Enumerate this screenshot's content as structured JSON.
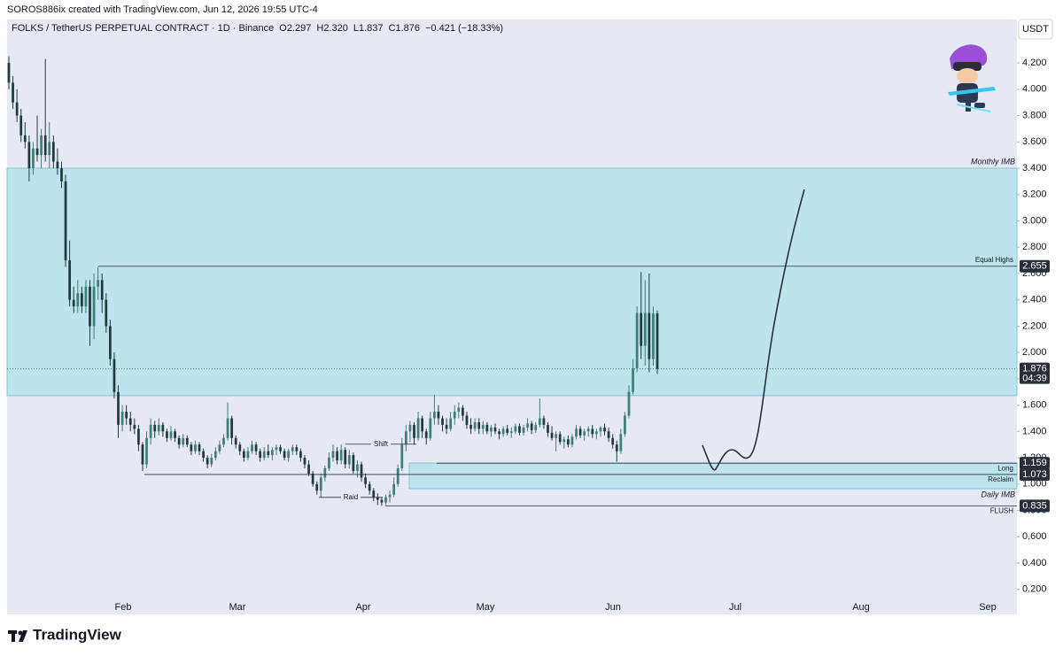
{
  "header": {
    "credit": "SOROS886ix created with TradingView.com, Jun 12, 2026 19:55 UTC-4",
    "brand": "TradingView"
  },
  "chart_data": {
    "type": "candlestick",
    "title": "FOLKS / TetherUS PERPETUAL CONTRACT · 1D · Binance",
    "legend_values": [
      "O2.297",
      "H2.320",
      "L1.837",
      "C1.876",
      "−0.421 (−18.33%)"
    ],
    "currency": "USDT",
    "up_color": "#3f7d79",
    "down_color": "#1f3b3e",
    "zone_color": "#bde3ed",
    "x_labels": [
      "Feb",
      "Mar",
      "Apr",
      "May",
      "Jun",
      "Jul",
      "Aug",
      "Sep"
    ],
    "ylim": [
      0.01,
      4.53
    ],
    "yticks": [
      {
        "value": 0.2,
        "label": "0.200"
      },
      {
        "value": 0.4,
        "label": "0.400"
      },
      {
        "value": 0.6,
        "label": "0.600"
      },
      {
        "value": 0.8,
        "label": "0.800"
      },
      {
        "value": 1.0,
        "label": "1.000"
      },
      {
        "value": 1.2,
        "label": "1.200"
      },
      {
        "value": 1.4,
        "label": "1.400"
      },
      {
        "value": 1.6,
        "label": "1.600"
      },
      {
        "value": 1.8,
        "label": "1.800"
      },
      {
        "value": 2.0,
        "label": "2.000"
      },
      {
        "value": 2.2,
        "label": "2.200"
      },
      {
        "value": 2.4,
        "label": "2.400"
      },
      {
        "value": 2.6,
        "label": "2.600"
      },
      {
        "value": 2.8,
        "label": "2.800"
      },
      {
        "value": 3.0,
        "label": "3.000"
      },
      {
        "value": 3.2,
        "label": "3.200"
      },
      {
        "value": 3.4,
        "label": "3.400"
      },
      {
        "value": 3.6,
        "label": "3.600"
      },
      {
        "value": 3.8,
        "label": "3.800"
      },
      {
        "value": 4.0,
        "label": "4.000"
      },
      {
        "value": 4.2,
        "label": "4.200"
      }
    ],
    "zones": [
      {
        "name": "Monthly IMB",
        "range": [
          3.4,
          1.672
        ]
      },
      {
        "name": "Daily IMB",
        "range": [
          1.16,
          0.965
        ]
      }
    ],
    "levels": [
      {
        "name": "Equal Highs",
        "value": 2.655
      },
      {
        "name": "Long",
        "value": 1.159
      },
      {
        "name": "Reclaim",
        "value": 1.073
      },
      {
        "name": "FLUSH",
        "value": 0.835
      },
      {
        "name": "Shift",
        "value": 1.303
      },
      {
        "name": "Raid",
        "value": 0.899
      }
    ],
    "current_price": 1.876,
    "countdown": "04:39",
    "candles": [
      [
        4.2,
        4.25,
        4.0,
        4.05
      ],
      [
        4.05,
        4.1,
        3.85,
        3.9
      ],
      [
        3.9,
        4.0,
        3.75,
        3.8
      ],
      [
        3.8,
        3.85,
        3.6,
        3.65
      ],
      [
        3.65,
        3.75,
        3.55,
        3.6
      ],
      [
        3.6,
        3.65,
        3.3,
        3.4
      ],
      [
        3.4,
        3.6,
        3.35,
        3.55
      ],
      [
        3.55,
        3.8,
        3.45,
        3.5
      ],
      [
        3.5,
        3.7,
        3.4,
        3.65
      ],
      [
        3.65,
        4.23,
        3.45,
        3.5
      ],
      [
        3.5,
        3.75,
        3.4,
        3.6
      ],
      [
        3.6,
        3.65,
        3.4,
        3.45
      ],
      [
        3.45,
        3.55,
        3.35,
        3.4
      ],
      [
        3.4,
        3.45,
        3.25,
        3.3
      ],
      [
        3.3,
        3.35,
        2.65,
        2.7
      ],
      [
        2.7,
        2.85,
        2.35,
        2.4
      ],
      [
        2.4,
        2.5,
        2.3,
        2.35
      ],
      [
        2.35,
        2.55,
        2.3,
        2.45
      ],
      [
        2.45,
        2.5,
        2.3,
        2.35
      ],
      [
        2.35,
        2.55,
        2.3,
        2.5
      ],
      [
        2.5,
        2.55,
        2.05,
        2.2
      ],
      [
        2.2,
        2.6,
        2.1,
        2.5
      ],
      [
        2.5,
        2.65,
        2.4,
        2.55
      ],
      [
        2.55,
        2.6,
        2.3,
        2.4
      ],
      [
        2.4,
        2.45,
        2.15,
        2.2
      ],
      [
        2.2,
        2.25,
        1.9,
        1.95
      ],
      [
        1.95,
        2.0,
        1.65,
        1.7
      ],
      [
        1.7,
        1.75,
        1.35,
        1.45
      ],
      [
        1.45,
        1.6,
        1.4,
        1.55
      ],
      [
        1.55,
        1.6,
        1.45,
        1.5
      ],
      [
        1.5,
        1.55,
        1.4,
        1.45
      ],
      [
        1.45,
        1.5,
        1.38,
        1.42
      ],
      [
        1.42,
        1.45,
        1.25,
        1.3
      ],
      [
        1.3,
        1.32,
        1.1,
        1.15
      ],
      [
        1.15,
        1.4,
        1.12,
        1.35
      ],
      [
        1.35,
        1.5,
        1.3,
        1.45
      ],
      [
        1.45,
        1.48,
        1.35,
        1.4
      ],
      [
        1.4,
        1.5,
        1.37,
        1.45
      ],
      [
        1.45,
        1.47,
        1.36,
        1.4
      ],
      [
        1.4,
        1.42,
        1.32,
        1.35
      ],
      [
        1.35,
        1.44,
        1.33,
        1.4
      ],
      [
        1.4,
        1.42,
        1.32,
        1.35
      ],
      [
        1.35,
        1.37,
        1.27,
        1.3
      ],
      [
        1.3,
        1.38,
        1.28,
        1.35
      ],
      [
        1.35,
        1.37,
        1.28,
        1.3
      ],
      [
        1.3,
        1.32,
        1.22,
        1.25
      ],
      [
        1.25,
        1.33,
        1.23,
        1.3
      ],
      [
        1.3,
        1.32,
        1.22,
        1.25
      ],
      [
        1.25,
        1.27,
        1.17,
        1.2
      ],
      [
        1.2,
        1.22,
        1.12,
        1.15
      ],
      [
        1.15,
        1.23,
        1.13,
        1.2
      ],
      [
        1.2,
        1.28,
        1.18,
        1.25
      ],
      [
        1.25,
        1.33,
        1.23,
        1.3
      ],
      [
        1.3,
        1.38,
        1.28,
        1.35
      ],
      [
        1.35,
        1.62,
        1.33,
        1.5
      ],
      [
        1.5,
        1.52,
        1.3,
        1.35
      ],
      [
        1.35,
        1.37,
        1.27,
        1.3
      ],
      [
        1.3,
        1.32,
        1.22,
        1.25
      ],
      [
        1.25,
        1.27,
        1.17,
        1.2
      ],
      [
        1.2,
        1.28,
        1.18,
        1.25
      ],
      [
        1.25,
        1.33,
        1.23,
        1.3
      ],
      [
        1.3,
        1.32,
        1.22,
        1.25
      ],
      [
        1.25,
        1.27,
        1.17,
        1.2
      ],
      [
        1.2,
        1.28,
        1.18,
        1.25
      ],
      [
        1.25,
        1.3,
        1.2,
        1.22
      ],
      [
        1.22,
        1.28,
        1.18,
        1.26
      ],
      [
        1.26,
        1.3,
        1.22,
        1.28
      ],
      [
        1.28,
        1.3,
        1.23,
        1.25
      ],
      [
        1.25,
        1.27,
        1.18,
        1.2
      ],
      [
        1.2,
        1.27,
        1.17,
        1.25
      ],
      [
        1.25,
        1.3,
        1.22,
        1.28
      ],
      [
        1.28,
        1.3,
        1.22,
        1.25
      ],
      [
        1.25,
        1.27,
        1.17,
        1.2
      ],
      [
        1.2,
        1.22,
        1.12,
        1.15
      ],
      [
        1.15,
        1.18,
        1.06,
        1.08
      ],
      [
        1.08,
        1.1,
        0.98,
        1.0
      ],
      [
        1.0,
        1.02,
        0.92,
        0.95
      ],
      [
        0.95,
        1.08,
        0.9,
        1.05
      ],
      [
        1.05,
        1.14,
        1.02,
        1.12
      ],
      [
        1.12,
        1.24,
        1.1,
        1.2
      ],
      [
        1.2,
        1.3,
        1.17,
        1.25
      ],
      [
        1.25,
        1.28,
        1.15,
        1.18
      ],
      [
        1.18,
        1.3,
        1.15,
        1.26
      ],
      [
        1.26,
        1.28,
        1.12,
        1.15
      ],
      [
        1.15,
        1.26,
        1.12,
        1.22
      ],
      [
        1.22,
        1.24,
        1.08,
        1.1
      ],
      [
        1.1,
        1.18,
        1.05,
        1.15
      ],
      [
        1.15,
        1.17,
        1.02,
        1.05
      ],
      [
        1.05,
        1.08,
        0.97,
        1.0
      ],
      [
        1.0,
        1.02,
        0.92,
        0.95
      ],
      [
        0.95,
        0.97,
        0.87,
        0.9
      ],
      [
        0.9,
        0.93,
        0.84,
        0.88
      ],
      [
        0.88,
        0.9,
        0.835,
        0.86
      ],
      [
        0.86,
        0.92,
        0.84,
        0.9
      ],
      [
        0.9,
        0.95,
        0.86,
        0.92
      ],
      [
        0.92,
        1.05,
        0.9,
        1.0
      ],
      [
        1.0,
        1.15,
        0.98,
        1.12
      ],
      [
        1.12,
        1.35,
        1.1,
        1.3
      ],
      [
        1.3,
        1.45,
        1.25,
        1.4
      ],
      [
        1.4,
        1.48,
        1.32,
        1.45
      ],
      [
        1.45,
        1.47,
        1.3,
        1.35
      ],
      [
        1.35,
        1.55,
        1.33,
        1.5
      ],
      [
        1.5,
        1.52,
        1.35,
        1.4
      ],
      [
        1.4,
        1.42,
        1.3,
        1.35
      ],
      [
        1.35,
        1.55,
        1.33,
        1.5
      ],
      [
        1.5,
        1.68,
        1.45,
        1.55
      ],
      [
        1.55,
        1.6,
        1.45,
        1.5
      ],
      [
        1.5,
        1.52,
        1.4,
        1.45
      ],
      [
        1.45,
        1.5,
        1.38,
        1.42
      ],
      [
        1.42,
        1.55,
        1.4,
        1.5
      ],
      [
        1.5,
        1.6,
        1.45,
        1.55
      ],
      [
        1.55,
        1.62,
        1.5,
        1.58
      ],
      [
        1.58,
        1.6,
        1.48,
        1.52
      ],
      [
        1.52,
        1.55,
        1.42,
        1.45
      ],
      [
        1.45,
        1.5,
        1.38,
        1.42
      ],
      [
        1.42,
        1.5,
        1.4,
        1.47
      ],
      [
        1.47,
        1.5,
        1.38,
        1.42
      ],
      [
        1.42,
        1.48,
        1.38,
        1.45
      ],
      [
        1.45,
        1.47,
        1.38,
        1.4
      ],
      [
        1.4,
        1.45,
        1.36,
        1.43
      ],
      [
        1.43,
        1.46,
        1.38,
        1.4
      ],
      [
        1.4,
        1.42,
        1.34,
        1.38
      ],
      [
        1.38,
        1.44,
        1.36,
        1.42
      ],
      [
        1.42,
        1.45,
        1.37,
        1.39
      ],
      [
        1.39,
        1.43,
        1.35,
        1.4
      ],
      [
        1.4,
        1.46,
        1.38,
        1.44
      ],
      [
        1.44,
        1.46,
        1.37,
        1.39
      ],
      [
        1.39,
        1.45,
        1.37,
        1.43
      ],
      [
        1.43,
        1.5,
        1.4,
        1.46
      ],
      [
        1.46,
        1.48,
        1.38,
        1.41
      ],
      [
        1.41,
        1.47,
        1.39,
        1.45
      ],
      [
        1.45,
        1.65,
        1.43,
        1.5
      ],
      [
        1.5,
        1.52,
        1.42,
        1.45
      ],
      [
        1.45,
        1.47,
        1.36,
        1.39
      ],
      [
        1.39,
        1.44,
        1.33,
        1.35
      ],
      [
        1.35,
        1.4,
        1.25,
        1.38
      ],
      [
        1.38,
        1.4,
        1.3,
        1.32
      ],
      [
        1.32,
        1.36,
        1.27,
        1.34
      ],
      [
        1.34,
        1.37,
        1.28,
        1.3
      ],
      [
        1.3,
        1.38,
        1.28,
        1.36
      ],
      [
        1.36,
        1.45,
        1.34,
        1.42
      ],
      [
        1.42,
        1.44,
        1.35,
        1.37
      ],
      [
        1.37,
        1.42,
        1.33,
        1.4
      ],
      [
        1.4,
        1.44,
        1.36,
        1.42
      ],
      [
        1.42,
        1.45,
        1.35,
        1.38
      ],
      [
        1.38,
        1.42,
        1.34,
        1.4
      ],
      [
        1.4,
        1.44,
        1.36,
        1.43
      ],
      [
        1.43,
        1.46,
        1.37,
        1.4
      ],
      [
        1.4,
        1.43,
        1.32,
        1.35
      ],
      [
        1.35,
        1.38,
        1.27,
        1.3
      ],
      [
        1.3,
        1.33,
        1.17,
        1.25
      ],
      [
        1.25,
        1.42,
        1.23,
        1.38
      ],
      [
        1.38,
        1.55,
        1.36,
        1.52
      ],
      [
        1.52,
        1.75,
        1.5,
        1.7
      ],
      [
        1.7,
        1.95,
        1.68,
        1.88
      ],
      [
        1.88,
        2.35,
        1.85,
        2.3
      ],
      [
        2.3,
        2.61,
        1.95,
        2.05
      ],
      [
        2.05,
        2.55,
        1.9,
        2.3
      ],
      [
        2.3,
        2.6,
        1.85,
        1.95
      ],
      [
        1.95,
        2.35,
        1.9,
        2.297
      ],
      [
        2.297,
        2.32,
        1.837,
        1.876
      ]
    ]
  }
}
